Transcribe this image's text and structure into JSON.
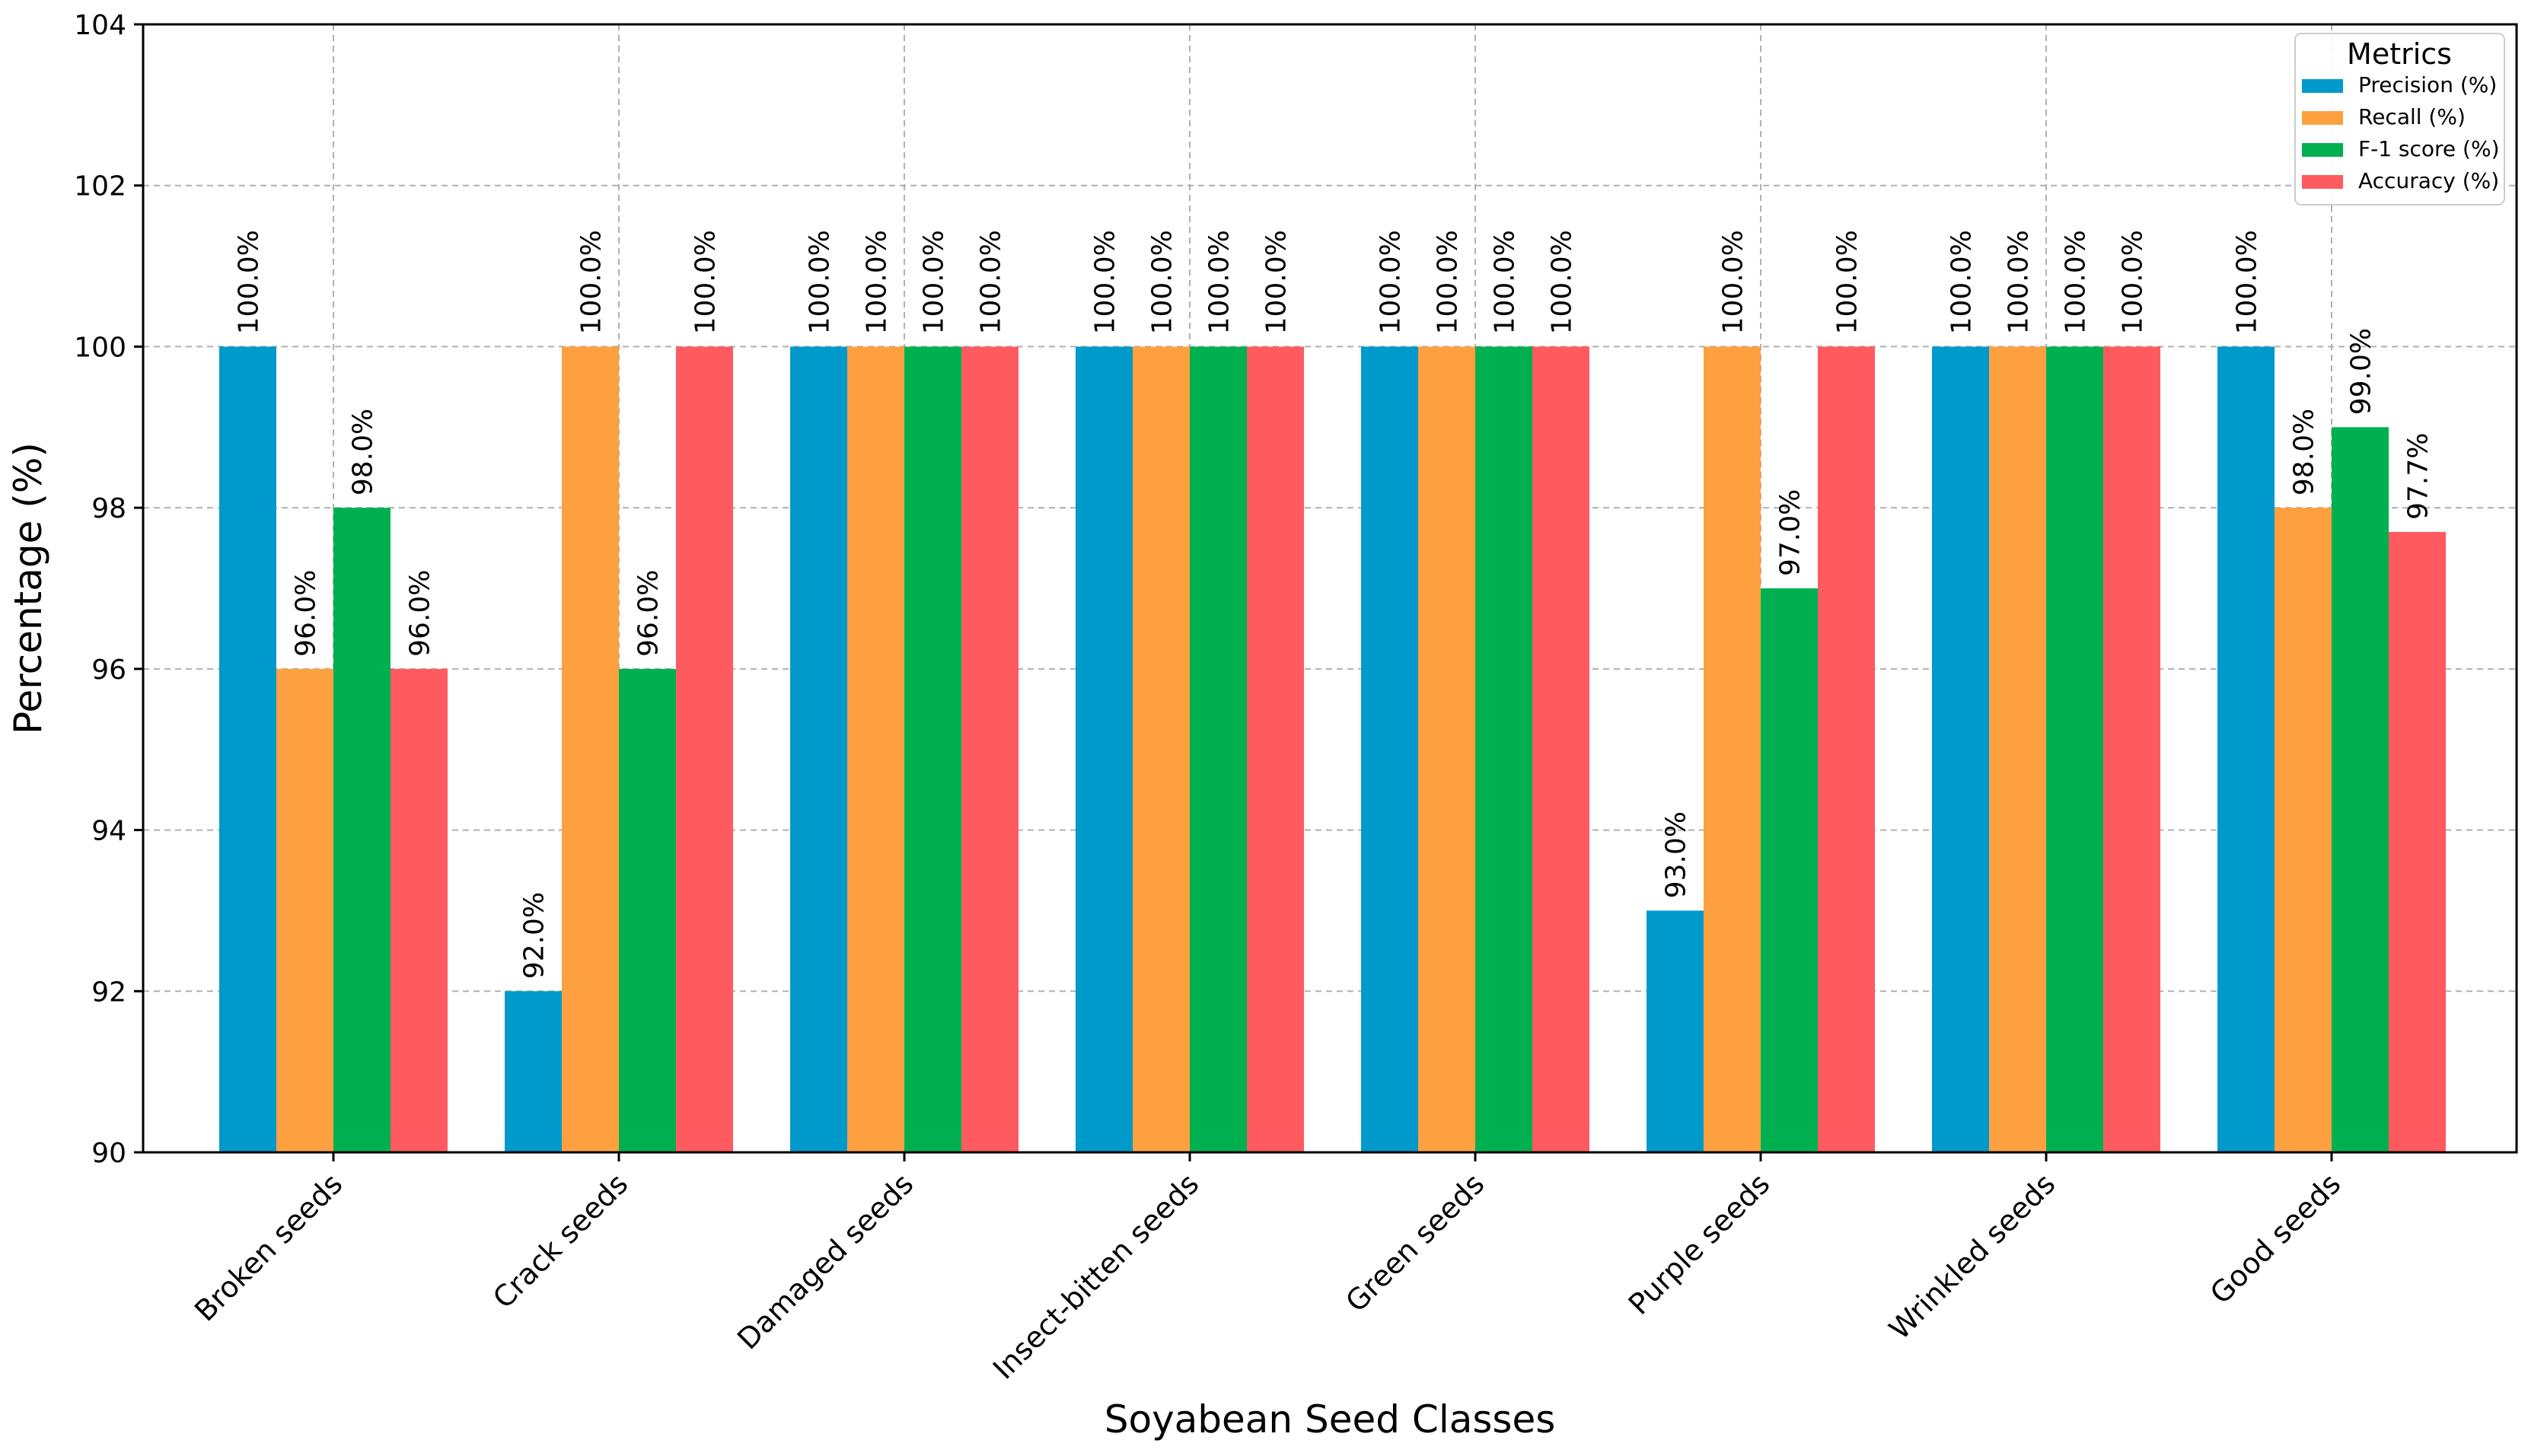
{
  "chart_data": {
    "type": "bar",
    "title": "",
    "xlabel": "Soyabean Seed Classes",
    "ylabel": "Percentage (%)",
    "ylim": [
      90,
      104
    ],
    "yticks": [
      90,
      92,
      94,
      96,
      98,
      100,
      102,
      104
    ],
    "grid": true,
    "categories": [
      "Broken seeds",
      "Crack seeds",
      "Damaged seeds",
      "Insect-bitten seeds",
      "Green seeds",
      "Purple seeds",
      "Wrinkled seeds",
      "Good seeds"
    ],
    "series": [
      {
        "name": "Precision (%)",
        "color": "#0099cc",
        "values": [
          100.0,
          92.0,
          100.0,
          100.0,
          100.0,
          93.0,
          100.0,
          100.0
        ],
        "labels": [
          "100.0%",
          "92.0%",
          "100.0%",
          "100.0%",
          "100.0%",
          "93.0%",
          "100.0%",
          "100.0%"
        ]
      },
      {
        "name": "Recall (%)",
        "color": "#ffa040",
        "values": [
          96.0,
          100.0,
          100.0,
          100.0,
          100.0,
          100.0,
          100.0,
          98.0
        ],
        "labels": [
          "96.0%",
          "100.0%",
          "100.0%",
          "100.0%",
          "100.0%",
          "100.0%",
          "100.0%",
          "98.0%"
        ]
      },
      {
        "name": "F-1 score (%)",
        "color": "#00b050",
        "values": [
          98.0,
          96.0,
          100.0,
          100.0,
          100.0,
          97.0,
          100.0,
          99.0
        ],
        "labels": [
          "98.0%",
          "96.0%",
          "100.0%",
          "100.0%",
          "100.0%",
          "97.0%",
          "100.0%",
          "99.0%"
        ]
      },
      {
        "name": "Accuracy (%)",
        "color": "#ff5a5f",
        "values": [
          96.0,
          100.0,
          100.0,
          100.0,
          100.0,
          100.0,
          100.0,
          97.7
        ],
        "labels": [
          "96.0%",
          "100.0%",
          "100.0%",
          "100.0%",
          "100.0%",
          "100.0%",
          "100.0%",
          "97.7%"
        ]
      }
    ],
    "legend": {
      "title": "Metrics",
      "position": "top-right"
    }
  }
}
